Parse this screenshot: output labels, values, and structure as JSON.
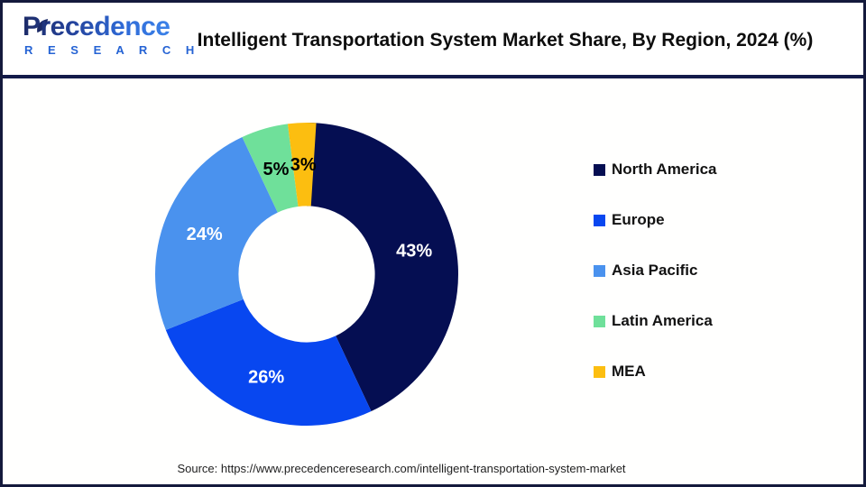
{
  "header": {
    "logo_name": "Precedence",
    "logo_subname": "R E S E A R C H",
    "title": "Intelligent Transportation System Market Share, By Region, 2024 (%)"
  },
  "chart_data": {
    "type": "pie",
    "subtype": "donut",
    "title": "Intelligent Transportation System Market Share, By Region, 2024 (%)",
    "categories": [
      "North America",
      "Europe",
      "Asia Pacific",
      "Latin America",
      "MEA"
    ],
    "values": [
      43,
      26,
      24,
      5,
      3
    ],
    "unit": "%",
    "data_labels": [
      "43%",
      "26%",
      "24%",
      "5%",
      "3%"
    ],
    "colors": [
      "#050e52",
      "#0847f0",
      "#4a92ee",
      "#6fe09a",
      "#fcbe10"
    ],
    "label_colors": [
      "#ffffff",
      "#ffffff",
      "#ffffff",
      "#000000",
      "#000000"
    ],
    "start_angle_deg": 0,
    "direction": "clockwise",
    "inner_radius_ratio": 0.45,
    "legend_position": "right",
    "grid": false
  },
  "legend": {
    "items": [
      {
        "label": "North America",
        "color": "#050e52"
      },
      {
        "label": "Europe",
        "color": "#0847f0"
      },
      {
        "label": "Asia Pacific",
        "color": "#4a92ee"
      },
      {
        "label": "Latin America",
        "color": "#6fe09a"
      },
      {
        "label": "MEA",
        "color": "#fcbe10"
      }
    ]
  },
  "footer": {
    "source": "Source: https://www.precedenceresearch.com/intelligent-transportation-system-market"
  }
}
